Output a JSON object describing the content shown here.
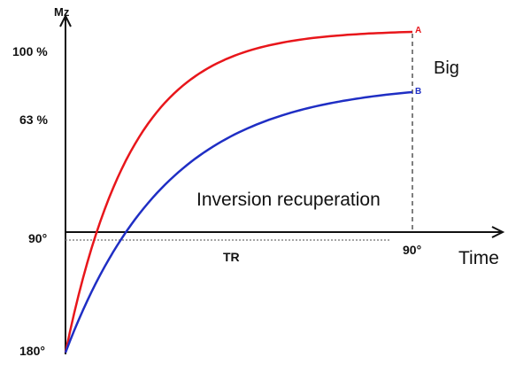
{
  "labels": {
    "y_axis": "Mz",
    "pct_100": "100 %",
    "pct_63": "63 %",
    "deg_90_left": "90°",
    "deg_180": "180°",
    "tr": "TR",
    "deg_90_bottom": "90°",
    "time": "Time",
    "big": "Big",
    "inversion": "Inversion recuperation",
    "curve_a": "A",
    "curve_b": "B"
  },
  "colors": {
    "axis": "#111111",
    "curve_a": "#e8161b",
    "curve_b": "#1f2ec4",
    "dashed": "#555555",
    "dotted": "#888888"
  }
}
